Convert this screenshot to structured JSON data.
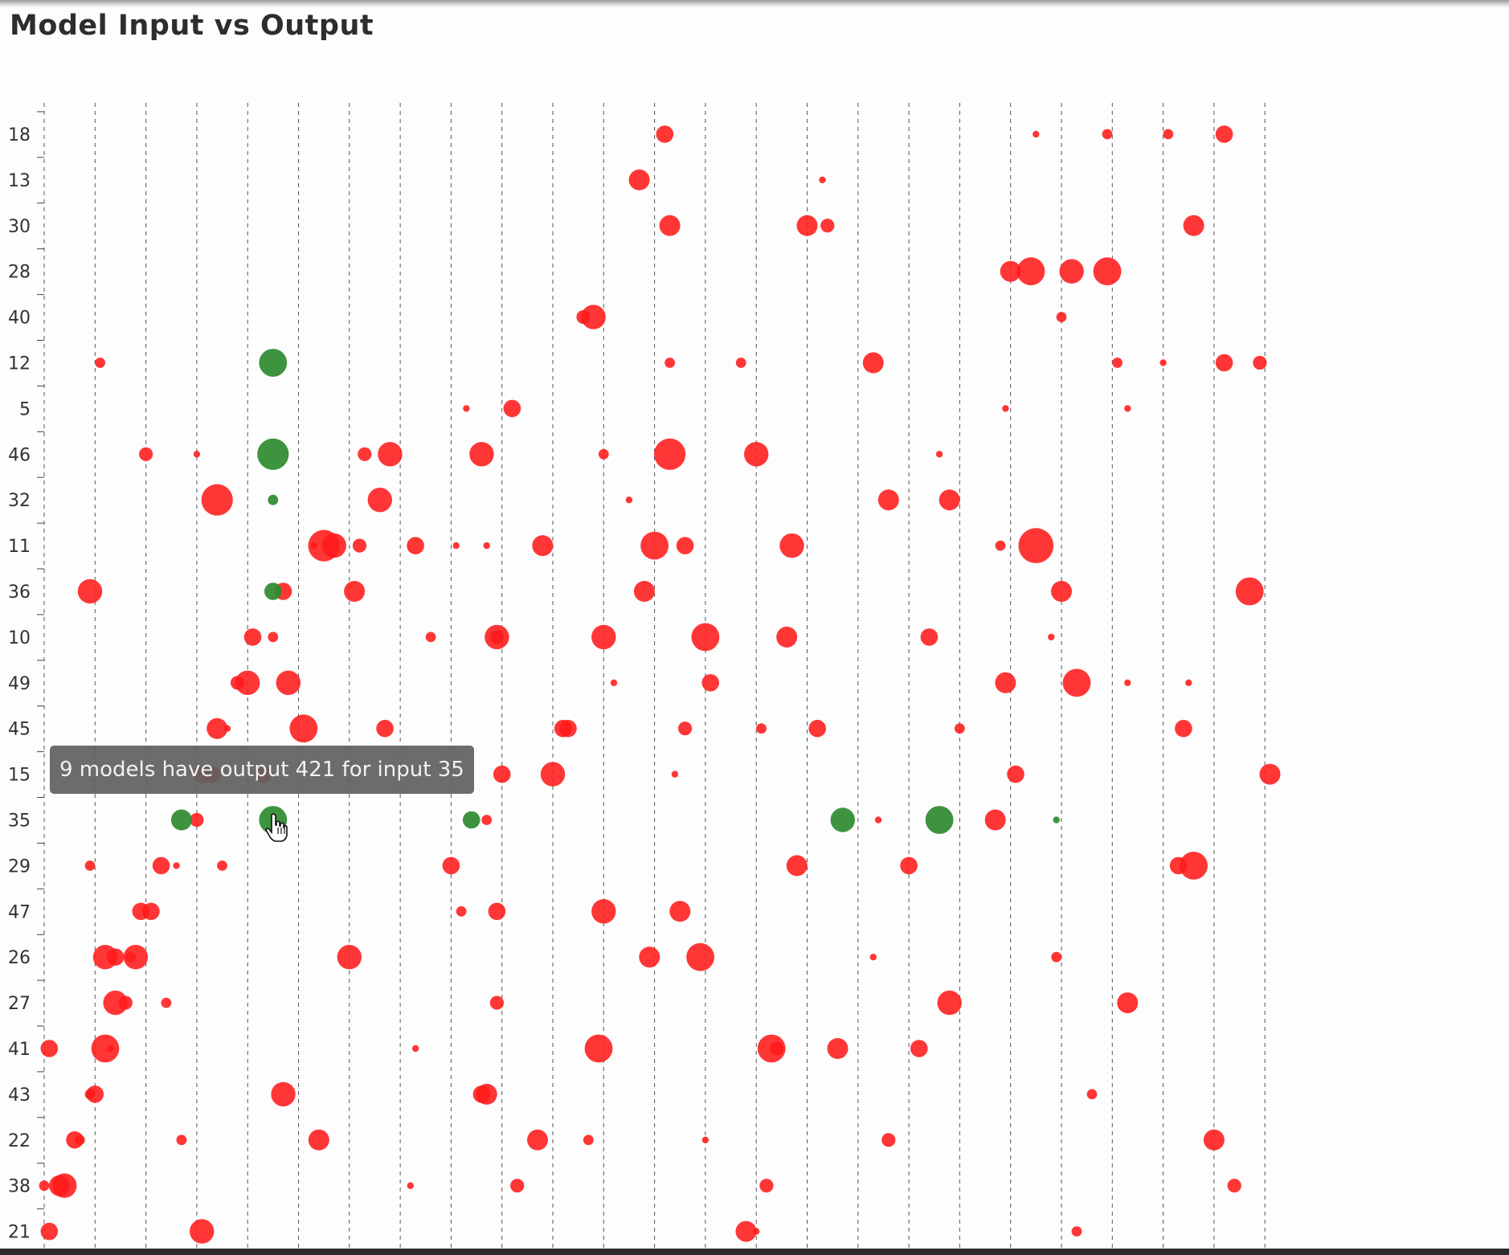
{
  "chart_data": {
    "type": "scatter",
    "title": "Model Input vs Output",
    "y_categories": [
      "18",
      "13",
      "30",
      "28",
      "40",
      "12",
      "5",
      "46",
      "32",
      "11",
      "36",
      "10",
      "49",
      "45",
      "15",
      "35",
      "29",
      "47",
      "26",
      "27",
      "41",
      "43",
      "22",
      "38",
      "21"
    ],
    "x_count": 25,
    "size_encodes": "number of models",
    "colors": {
      "default": "#ff1a1a",
      "highlight": "#2e8b2e"
    },
    "grid": "vertical dashed",
    "points": [
      {
        "x": 12.2,
        "y": "18",
        "size": 4,
        "color": "default"
      },
      {
        "x": 19.5,
        "y": "18",
        "size": 1,
        "color": "default"
      },
      {
        "x": 20.9,
        "y": "18",
        "size": 2,
        "color": "default"
      },
      {
        "x": 22.1,
        "y": "18",
        "size": 2,
        "color": "default"
      },
      {
        "x": 23.2,
        "y": "18",
        "size": 4,
        "color": "default"
      },
      {
        "x": 11.7,
        "y": "13",
        "size": 5,
        "color": "default"
      },
      {
        "x": 15.3,
        "y": "13",
        "size": 1,
        "color": "default"
      },
      {
        "x": 22.6,
        "y": "30",
        "size": 5,
        "color": "default"
      },
      {
        "x": 12.3,
        "y": "30",
        "size": 5,
        "color": "default"
      },
      {
        "x": 15.0,
        "y": "30",
        "size": 5,
        "color": "default"
      },
      {
        "x": 15.4,
        "y": "30",
        "size": 3,
        "color": "default"
      },
      {
        "x": 19.0,
        "y": "28",
        "size": 5,
        "color": "default"
      },
      {
        "x": 19.4,
        "y": "28",
        "size": 7,
        "color": "default"
      },
      {
        "x": 20.2,
        "y": "28",
        "size": 6,
        "color": "default"
      },
      {
        "x": 20.9,
        "y": "28",
        "size": 7,
        "color": "default"
      },
      {
        "x": 10.6,
        "y": "40",
        "size": 3,
        "color": "default"
      },
      {
        "x": 10.8,
        "y": "40",
        "size": 6,
        "color": "default"
      },
      {
        "x": 20.0,
        "y": "40",
        "size": 2,
        "color": "default"
      },
      {
        "x": 4.5,
        "y": "12",
        "size": 7,
        "color": "highlight"
      },
      {
        "x": 1.1,
        "y": "12",
        "size": 2,
        "color": "default"
      },
      {
        "x": 12.3,
        "y": "12",
        "size": 2,
        "color": "default"
      },
      {
        "x": 13.7,
        "y": "12",
        "size": 2,
        "color": "default"
      },
      {
        "x": 16.3,
        "y": "12",
        "size": 5,
        "color": "default"
      },
      {
        "x": 21.1,
        "y": "12",
        "size": 2,
        "color": "default"
      },
      {
        "x": 22.0,
        "y": "12",
        "size": 1,
        "color": "default"
      },
      {
        "x": 23.9,
        "y": "12",
        "size": 3,
        "color": "default"
      },
      {
        "x": 23.2,
        "y": "12",
        "size": 4,
        "color": "default"
      },
      {
        "x": 9.2,
        "y": "5",
        "size": 4,
        "color": "default"
      },
      {
        "x": 18.9,
        "y": "5",
        "size": 1,
        "color": "default"
      },
      {
        "x": 8.3,
        "y": "5",
        "size": 1,
        "color": "default"
      },
      {
        "x": 21.3,
        "y": "5",
        "size": 1,
        "color": "default"
      },
      {
        "x": 4.5,
        "y": "46",
        "size": 8,
        "color": "highlight"
      },
      {
        "x": 3.0,
        "y": "46",
        "size": 1,
        "color": "default"
      },
      {
        "x": 2.0,
        "y": "46",
        "size": 3,
        "color": "default"
      },
      {
        "x": 6.8,
        "y": "46",
        "size": 6,
        "color": "default"
      },
      {
        "x": 8.6,
        "y": "46",
        "size": 6,
        "color": "default"
      },
      {
        "x": 11.0,
        "y": "46",
        "size": 2,
        "color": "default"
      },
      {
        "x": 12.3,
        "y": "46",
        "size": 8,
        "color": "default"
      },
      {
        "x": 14.0,
        "y": "46",
        "size": 6,
        "color": "default"
      },
      {
        "x": 17.6,
        "y": "46",
        "size": 1,
        "color": "default"
      }
    ],
    "points2": [
      {
        "x": 4.5,
        "y": "32",
        "size": 2,
        "color": "highlight"
      },
      {
        "x": 3.4,
        "y": "32",
        "size": 8,
        "color": "default"
      },
      {
        "x": 6.6,
        "y": "32",
        "size": 6,
        "color": "default"
      },
      {
        "x": 11.5,
        "y": "32",
        "size": 1,
        "color": "default"
      },
      {
        "x": 6.3,
        "y": "46",
        "size": 3,
        "color": "default"
      },
      {
        "x": 16.6,
        "y": "32",
        "size": 5,
        "color": "default"
      },
      {
        "x": 17.8,
        "y": "32",
        "size": 5,
        "color": "default"
      },
      {
        "x": 6.2,
        "y": "11",
        "size": 3,
        "color": "default"
      },
      {
        "x": 5.7,
        "y": "11",
        "size": 6,
        "color": "default"
      },
      {
        "x": 12.0,
        "y": "11",
        "size": 7,
        "color": "default"
      },
      {
        "x": 5.5,
        "y": "11",
        "size": 8,
        "color": "default"
      },
      {
        "x": 7.3,
        "y": "11",
        "size": 4,
        "color": "default"
      },
      {
        "x": 9.8,
        "y": "11",
        "size": 5,
        "color": "default"
      },
      {
        "x": 14.7,
        "y": "11",
        "size": 6,
        "color": "default"
      },
      {
        "x": 18.8,
        "y": "11",
        "size": 2,
        "color": "default"
      },
      {
        "x": 5.3,
        "y": "11",
        "size": 1,
        "color": "default"
      },
      {
        "x": 8.1,
        "y": "11",
        "size": 1,
        "color": "default"
      },
      {
        "x": 8.7,
        "y": "11",
        "size": 1,
        "color": "default"
      },
      {
        "x": 19.5,
        "y": "11",
        "size": 9,
        "color": "default"
      },
      {
        "x": 0.9,
        "y": "36",
        "size": 6,
        "color": "default"
      },
      {
        "x": 4.7,
        "y": "36",
        "size": 4,
        "color": "default"
      },
      {
        "x": 12.6,
        "y": "11",
        "size": 4,
        "color": "default"
      },
      {
        "x": 4.5,
        "y": "36",
        "size": 4,
        "color": "highlight"
      },
      {
        "x": 6.1,
        "y": "36",
        "size": 5,
        "color": "default"
      },
      {
        "x": 11.8,
        "y": "36",
        "size": 5,
        "color": "default"
      },
      {
        "x": 20.0,
        "y": "36",
        "size": 5,
        "color": "default"
      },
      {
        "x": 23.7,
        "y": "36",
        "size": 7,
        "color": "default"
      },
      {
        "x": 4.5,
        "y": "10",
        "size": 2,
        "color": "default"
      },
      {
        "x": 8.9,
        "y": "10",
        "size": 6,
        "color": "default"
      },
      {
        "x": 11.0,
        "y": "10",
        "size": 6,
        "color": "default"
      },
      {
        "x": 14.6,
        "y": "10",
        "size": 5,
        "color": "default"
      },
      {
        "x": 4.1,
        "y": "10",
        "size": 4,
        "color": "default"
      },
      {
        "x": 7.6,
        "y": "10",
        "size": 2,
        "color": "default"
      },
      {
        "x": 8.9,
        "y": "10",
        "size": 3,
        "color": "default"
      },
      {
        "x": 13.0,
        "y": "10",
        "size": 7,
        "color": "default"
      },
      {
        "x": 17.4,
        "y": "10",
        "size": 4,
        "color": "default"
      },
      {
        "x": 19.8,
        "y": "10",
        "size": 1,
        "color": "default"
      },
      {
        "x": 4.0,
        "y": "49",
        "size": 6,
        "color": "default"
      },
      {
        "x": 4.8,
        "y": "49",
        "size": 6,
        "color": "default"
      },
      {
        "x": 3.8,
        "y": "49",
        "size": 3,
        "color": "default"
      }
    ],
    "points3": [
      {
        "x": 13.1,
        "y": "49",
        "size": 4,
        "color": "default"
      },
      {
        "x": 11.2,
        "y": "49",
        "size": 1,
        "color": "default"
      },
      {
        "x": 18.9,
        "y": "49",
        "size": 5,
        "color": "default"
      },
      {
        "x": 20.3,
        "y": "49",
        "size": 7,
        "color": "default"
      },
      {
        "x": 21.3,
        "y": "49",
        "size": 1,
        "color": "default"
      },
      {
        "x": 22.5,
        "y": "49",
        "size": 1,
        "color": "default"
      },
      {
        "x": 3.6,
        "y": "45",
        "size": 1,
        "color": "default"
      },
      {
        "x": 6.7,
        "y": "45",
        "size": 4,
        "color": "default"
      },
      {
        "x": 10.2,
        "y": "45",
        "size": 4,
        "color": "default"
      },
      {
        "x": 14.1,
        "y": "45",
        "size": 2,
        "color": "default"
      },
      {
        "x": 15.2,
        "y": "45",
        "size": 4,
        "color": "default"
      },
      {
        "x": 3.4,
        "y": "45",
        "size": 5,
        "color": "default"
      },
      {
        "x": 5.1,
        "y": "45",
        "size": 7,
        "color": "default"
      },
      {
        "x": 10.3,
        "y": "45",
        "size": 4,
        "color": "default"
      },
      {
        "x": 12.6,
        "y": "45",
        "size": 3,
        "color": "default"
      },
      {
        "x": 18.0,
        "y": "45",
        "size": 2,
        "color": "default"
      },
      {
        "x": 22.4,
        "y": "45",
        "size": 4,
        "color": "default"
      },
      {
        "x": 3.3,
        "y": "15",
        "size": 4,
        "color": "default"
      },
      {
        "x": 4.3,
        "y": "15",
        "size": 4,
        "color": "default"
      },
      {
        "x": 9.0,
        "y": "15",
        "size": 4,
        "color": "default"
      },
      {
        "x": 3.1,
        "y": "15",
        "size": 4,
        "color": "default"
      },
      {
        "x": 10.0,
        "y": "15",
        "size": 6,
        "color": "default"
      },
      {
        "x": 12.4,
        "y": "15",
        "size": 1,
        "color": "default"
      },
      {
        "x": 19.1,
        "y": "15",
        "size": 4,
        "color": "default"
      },
      {
        "x": 24.1,
        "y": "15",
        "size": 5,
        "color": "default"
      },
      {
        "x": 3.0,
        "y": "35",
        "size": 3,
        "color": "default"
      },
      {
        "x": 8.7,
        "y": "35",
        "size": 2,
        "color": "default"
      },
      {
        "x": 18.7,
        "y": "35",
        "size": 5,
        "color": "default"
      },
      {
        "x": 2.7,
        "y": "35",
        "size": 5,
        "color": "highlight"
      },
      {
        "x": 4.5,
        "y": "35",
        "size": 7,
        "color": "highlight"
      },
      {
        "x": 8.4,
        "y": "35",
        "size": 4,
        "color": "highlight"
      },
      {
        "x": 15.7,
        "y": "35",
        "size": 6,
        "color": "highlight"
      },
      {
        "x": 17.6,
        "y": "35",
        "size": 7,
        "color": "highlight"
      },
      {
        "x": 19.9,
        "y": "35",
        "size": 1,
        "color": "highlight"
      },
      {
        "x": 16.4,
        "y": "35",
        "size": 1,
        "color": "default"
      },
      {
        "x": 0.9,
        "y": "29",
        "size": 2,
        "color": "default"
      },
      {
        "x": 2.6,
        "y": "29",
        "size": 1,
        "color": "default"
      },
      {
        "x": 17.0,
        "y": "29",
        "size": 4,
        "color": "default"
      },
      {
        "x": 22.6,
        "y": "29",
        "size": 7,
        "color": "default"
      },
      {
        "x": 2.3,
        "y": "29",
        "size": 4,
        "color": "default"
      }
    ],
    "points4": [
      {
        "x": 3.5,
        "y": "29",
        "size": 2,
        "color": "default"
      },
      {
        "x": 8.0,
        "y": "29",
        "size": 4,
        "color": "default"
      },
      {
        "x": 14.8,
        "y": "29",
        "size": 5,
        "color": "default"
      },
      {
        "x": 22.3,
        "y": "29",
        "size": 4,
        "color": "default"
      },
      {
        "x": 2.1,
        "y": "47",
        "size": 4,
        "color": "default"
      },
      {
        "x": 8.2,
        "y": "47",
        "size": 2,
        "color": "default"
      },
      {
        "x": 11.0,
        "y": "47",
        "size": 6,
        "color": "default"
      },
      {
        "x": 12.5,
        "y": "47",
        "size": 5,
        "color": "default"
      },
      {
        "x": 1.9,
        "y": "47",
        "size": 4,
        "color": "default"
      },
      {
        "x": 8.9,
        "y": "47",
        "size": 4,
        "color": "default"
      },
      {
        "x": 1.4,
        "y": "26",
        "size": 4,
        "color": "default"
      },
      {
        "x": 1.8,
        "y": "26",
        "size": 6,
        "color": "default"
      },
      {
        "x": 6.0,
        "y": "26",
        "size": 6,
        "color": "default"
      },
      {
        "x": 11.9,
        "y": "26",
        "size": 5,
        "color": "default"
      },
      {
        "x": 16.3,
        "y": "26",
        "size": 1,
        "color": "default"
      },
      {
        "x": 19.9,
        "y": "26",
        "size": 2,
        "color": "default"
      },
      {
        "x": 1.2,
        "y": "26",
        "size": 6,
        "color": "default"
      },
      {
        "x": 1.7,
        "y": "26",
        "size": 2,
        "color": "default"
      },
      {
        "x": 12.9,
        "y": "26",
        "size": 7,
        "color": "default"
      },
      {
        "x": 1.6,
        "y": "27",
        "size": 3,
        "color": "default"
      },
      {
        "x": 8.9,
        "y": "27",
        "size": 3,
        "color": "default"
      },
      {
        "x": 17.8,
        "y": "27",
        "size": 6,
        "color": "default"
      },
      {
        "x": 21.3,
        "y": "27",
        "size": 5,
        "color": "default"
      },
      {
        "x": 1.4,
        "y": "27",
        "size": 6,
        "color": "default"
      },
      {
        "x": 2.4,
        "y": "27",
        "size": 2,
        "color": "default"
      },
      {
        "x": 0.1,
        "y": "41",
        "size": 4,
        "color": "default"
      },
      {
        "x": 1.3,
        "y": "41",
        "size": 1,
        "color": "default"
      },
      {
        "x": 14.4,
        "y": "41",
        "size": 3,
        "color": "default"
      },
      {
        "x": 1.2,
        "y": "41",
        "size": 7,
        "color": "default"
      },
      {
        "x": 7.3,
        "y": "41",
        "size": 1,
        "color": "default"
      },
      {
        "x": 10.9,
        "y": "41",
        "size": 7,
        "color": "default"
      },
      {
        "x": 14.3,
        "y": "41",
        "size": 7,
        "color": "default"
      },
      {
        "x": 15.6,
        "y": "41",
        "size": 5,
        "color": "default"
      },
      {
        "x": 17.2,
        "y": "41",
        "size": 4,
        "color": "default"
      },
      {
        "x": 1.0,
        "y": "43",
        "size": 4,
        "color": "default"
      },
      {
        "x": 0.9,
        "y": "43",
        "size": 2,
        "color": "default"
      },
      {
        "x": 4.7,
        "y": "43",
        "size": 6,
        "color": "default"
      },
      {
        "x": 8.6,
        "y": "43",
        "size": 4,
        "color": "default"
      },
      {
        "x": 8.7,
        "y": "43",
        "size": 5,
        "color": "default"
      },
      {
        "x": 20.6,
        "y": "43",
        "size": 2,
        "color": "default"
      }
    ],
    "points5": [
      {
        "x": 0.7,
        "y": "22",
        "size": 2,
        "color": "default"
      },
      {
        "x": 2.7,
        "y": "22",
        "size": 2,
        "color": "default"
      },
      {
        "x": 9.7,
        "y": "22",
        "size": 5,
        "color": "default"
      },
      {
        "x": 13.0,
        "y": "22",
        "size": 1,
        "color": "default"
      },
      {
        "x": 23.0,
        "y": "22",
        "size": 5,
        "color": "default"
      },
      {
        "x": 0.6,
        "y": "22",
        "size": 4,
        "color": "default"
      },
      {
        "x": 5.4,
        "y": "22",
        "size": 5,
        "color": "default"
      },
      {
        "x": 10.7,
        "y": "22",
        "size": 2,
        "color": "default"
      },
      {
        "x": 16.6,
        "y": "22",
        "size": 3,
        "color": "default"
      },
      {
        "x": 0.4,
        "y": "38",
        "size": 6,
        "color": "default"
      },
      {
        "x": 7.2,
        "y": "38",
        "size": 1,
        "color": "default"
      },
      {
        "x": 9.3,
        "y": "38",
        "size": 3,
        "color": "default"
      },
      {
        "x": 0.3,
        "y": "38",
        "size": 5,
        "color": "default"
      },
      {
        "x": 0.0,
        "y": "38",
        "size": 2,
        "color": "default"
      },
      {
        "x": 14.2,
        "y": "38",
        "size": 3,
        "color": "default"
      },
      {
        "x": 23.4,
        "y": "38",
        "size": 3,
        "color": "default"
      },
      {
        "x": 0.1,
        "y": "21",
        "size": 4,
        "color": "default"
      },
      {
        "x": 3.1,
        "y": "21",
        "size": 6,
        "color": "default"
      },
      {
        "x": 14.0,
        "y": "21",
        "size": 1,
        "color": "default"
      },
      {
        "x": 13.8,
        "y": "21",
        "size": 5,
        "color": "default"
      },
      {
        "x": 20.3,
        "y": "21",
        "size": 2,
        "color": "default"
      }
    ],
    "tooltip": "9 models have output 421 for input 35"
  }
}
